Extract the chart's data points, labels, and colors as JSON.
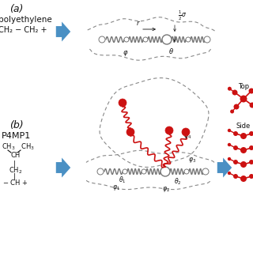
{
  "bg_color": "#ffffff",
  "label_a": "(a)",
  "label_b": "(b)",
  "polymer_a_name": "polyethylene",
  "polymer_a_formula": "CH₂ − CH₂ +",
  "polymer_b_name": "P4MP1",
  "arrow_color": "#4A90C4",
  "spring_color_gray": "#777777",
  "spring_color_red": "#cc1111",
  "node_color_red": "#cc1111",
  "dashed_color": "#888888",
  "text_color": "#111111",
  "top_label": "Top",
  "side_label": "Side",
  "fig_width": 3.2,
  "fig_height": 3.2,
  "dpi": 100
}
